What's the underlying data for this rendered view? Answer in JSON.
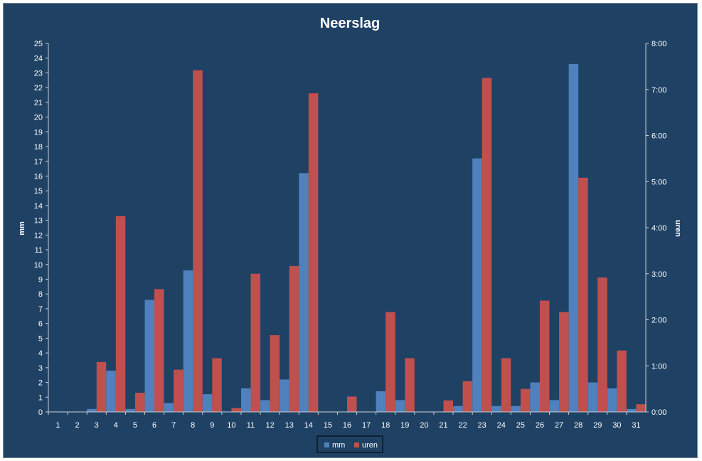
{
  "chart_data": {
    "type": "bar",
    "title": "Neerslag",
    "ylabel": "mm",
    "y2label": "uren",
    "categories": [
      "1",
      "2",
      "3",
      "4",
      "5",
      "6",
      "7",
      "8",
      "9",
      "10",
      "11",
      "12",
      "13",
      "14",
      "15",
      "16",
      "17",
      "18",
      "19",
      "20",
      "21",
      "22",
      "23",
      "24",
      "25",
      "26",
      "27",
      "28",
      "29",
      "30",
      "31"
    ],
    "ylim": [
      0,
      25
    ],
    "yticks": [
      "0",
      "1",
      "2",
      "3",
      "4",
      "5",
      "6",
      "7",
      "8",
      "9",
      "10",
      "11",
      "12",
      "13",
      "14",
      "15",
      "16",
      "17",
      "18",
      "19",
      "20",
      "21",
      "22",
      "23",
      "24",
      "25"
    ],
    "y2lim_minutes": [
      0,
      480
    ],
    "y2ticks": [
      "0:00",
      "1:00",
      "2:00",
      "3:00",
      "4:00",
      "5:00",
      "6:00",
      "7:00",
      "8:00"
    ],
    "series": [
      {
        "name": "mm",
        "axis": "left",
        "color": "#4f81bd",
        "values": [
          0,
          0,
          0.2,
          2.8,
          0.2,
          7.6,
          0.6,
          9.6,
          1.2,
          0,
          1.6,
          0.8,
          2.2,
          16.2,
          0,
          0,
          0,
          1.4,
          0.8,
          0,
          0,
          0.4,
          17.2,
          0.4,
          0.4,
          2.0,
          0.8,
          23.6,
          2.0,
          1.6,
          0.2
        ]
      },
      {
        "name": "uren",
        "axis": "right",
        "color": "#c0504d",
        "values_minutes": [
          0,
          0,
          65,
          255,
          25,
          160,
          55,
          445,
          70,
          5,
          180,
          100,
          190,
          415,
          0,
          20,
          0,
          130,
          70,
          0,
          15,
          40,
          435,
          70,
          30,
          145,
          130,
          305,
          175,
          80,
          10
        ]
      }
    ],
    "legend": "bottom",
    "grid": false
  }
}
